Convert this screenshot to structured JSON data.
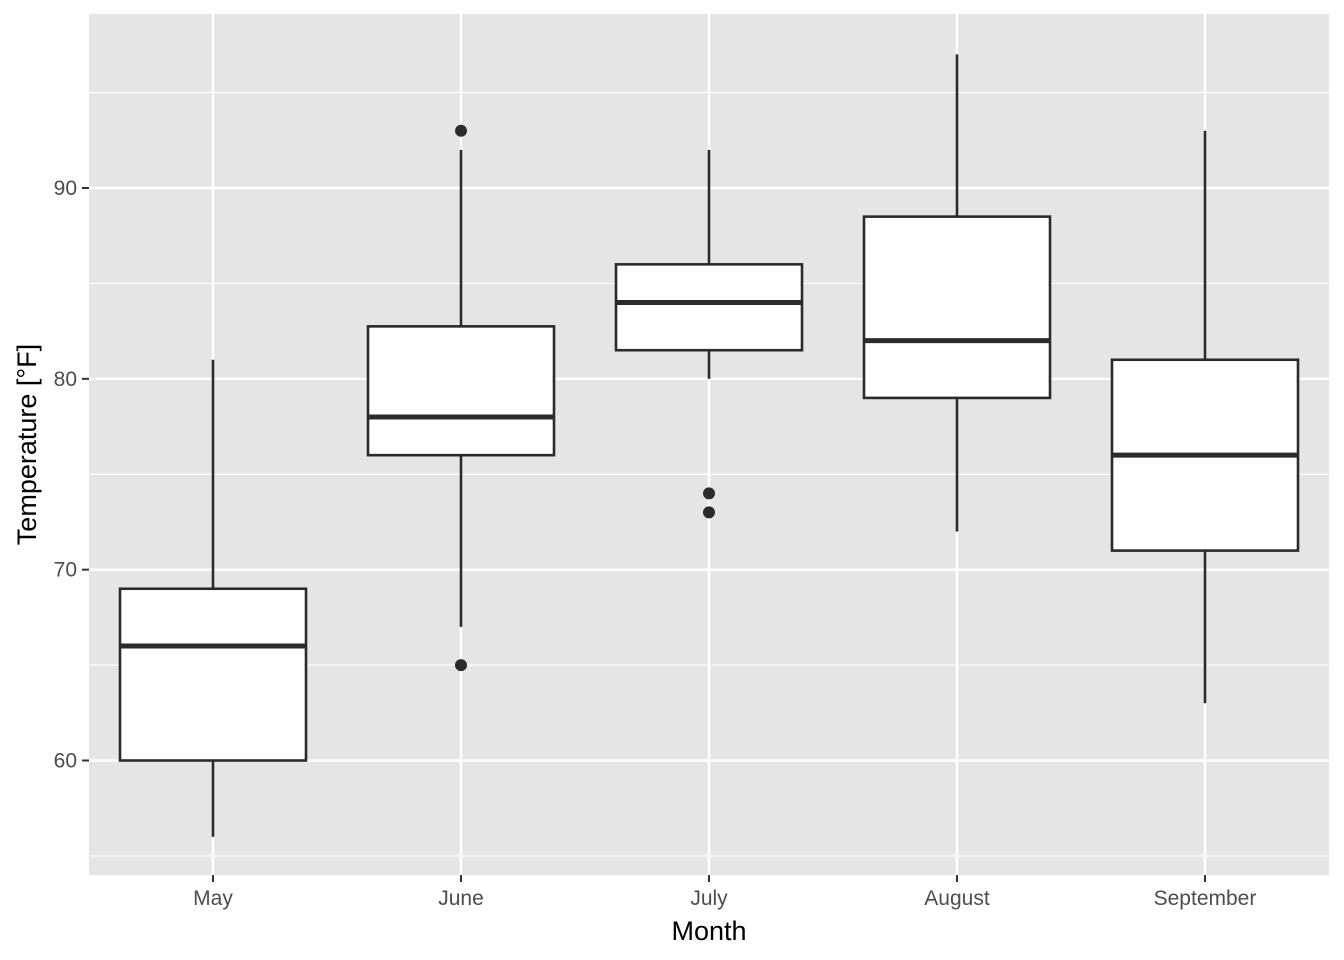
{
  "chart_data": {
    "type": "boxplot",
    "title": "",
    "xlabel": "Month",
    "ylabel": "Temperature [°F]",
    "ylim": [
      54,
      99
    ],
    "y_ticks": [
      60,
      70,
      80,
      90
    ],
    "grid": true,
    "categories": [
      "May",
      "June",
      "July",
      "August",
      "September"
    ],
    "boxes": [
      {
        "category": "May",
        "whisker_low": 56,
        "q1": 60,
        "median": 66,
        "q3": 69,
        "whisker_high": 81,
        "outliers": []
      },
      {
        "category": "June",
        "whisker_low": 67,
        "q1": 76,
        "median": 78,
        "q3": 82.75,
        "whisker_high": 92,
        "outliers": [
          93,
          65
        ]
      },
      {
        "category": "July",
        "whisker_low": 80,
        "q1": 81.5,
        "median": 84,
        "q3": 86,
        "whisker_high": 92,
        "outliers": [
          74,
          73
        ]
      },
      {
        "category": "August",
        "whisker_low": 72,
        "q1": 79,
        "median": 82,
        "q3": 88.5,
        "whisker_high": 97,
        "outliers": []
      },
      {
        "category": "September",
        "whisker_low": 63,
        "q1": 71,
        "median": 76,
        "q3": 81,
        "whisker_high": 93,
        "outliers": []
      }
    ],
    "colors": {
      "panel": "#e5e5e5",
      "grid": "#ffffff",
      "box_fill": "#ffffff",
      "box_stroke": "#2b2b2b"
    }
  }
}
